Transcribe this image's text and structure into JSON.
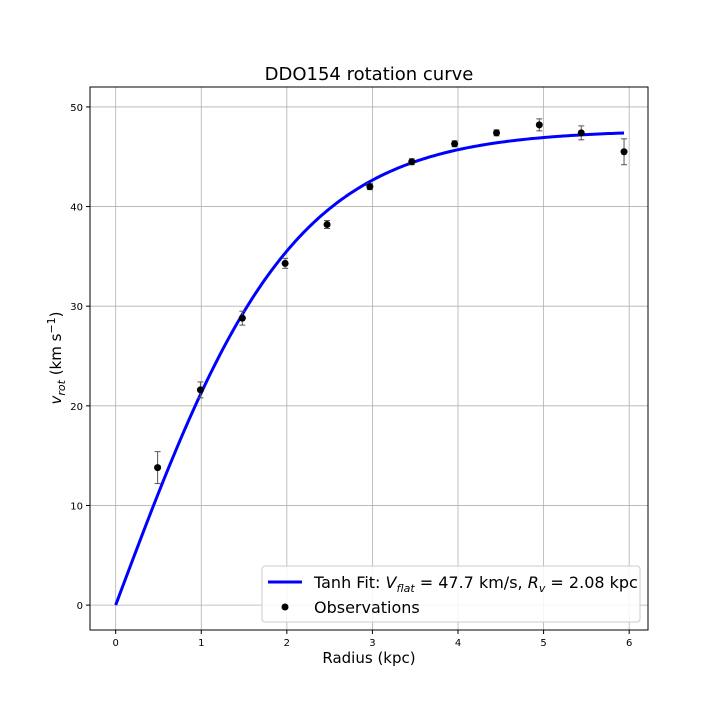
{
  "chart_data": {
    "type": "scatter",
    "title": "DDO154 rotation curve",
    "xlabel": "Radius (kpc)",
    "ylabel": "v_rot (km s^-1)",
    "xlim": [
      -0.3,
      6.22
    ],
    "ylim": [
      -2.5,
      52
    ],
    "xticks": [
      0,
      1,
      2,
      3,
      4,
      5,
      6
    ],
    "yticks": [
      0,
      10,
      20,
      30,
      40,
      50
    ],
    "grid": true,
    "legend_position": "bottom-right",
    "series": [
      {
        "name": "Tanh Fit: V_flat = 47.7 km/s, R_v = 2.08 kpc",
        "type": "line",
        "color": "#0000ff",
        "model": "tanh",
        "v_flat": 47.7,
        "r_v": 2.08,
        "x_range": [
          0,
          5.94
        ]
      },
      {
        "name": "Observations",
        "type": "scatter",
        "color": "#000000",
        "errorbar_color": "#555555",
        "points": [
          {
            "x": 0.49,
            "y": 13.8,
            "err": 1.6
          },
          {
            "x": 0.99,
            "y": 21.6,
            "err": 0.8
          },
          {
            "x": 1.48,
            "y": 28.8,
            "err": 0.7
          },
          {
            "x": 1.98,
            "y": 34.3,
            "err": 0.5
          },
          {
            "x": 2.47,
            "y": 38.2,
            "err": 0.4
          },
          {
            "x": 2.97,
            "y": 42.0,
            "err": 0.3
          },
          {
            "x": 3.46,
            "y": 44.5,
            "err": 0.3
          },
          {
            "x": 3.96,
            "y": 46.3,
            "err": 0.3
          },
          {
            "x": 4.45,
            "y": 47.4,
            "err": 0.3
          },
          {
            "x": 4.95,
            "y": 48.2,
            "err": 0.6
          },
          {
            "x": 5.44,
            "y": 47.4,
            "err": 0.7
          },
          {
            "x": 5.94,
            "y": 45.5,
            "err": 1.3
          }
        ]
      }
    ],
    "legend": {
      "fit_label_prefix": "Tanh Fit: ",
      "vflat_symbol": "V",
      "vflat_sub": "flat",
      "vflat_text": " = 47.7 km/s, ",
      "rv_symbol": "R",
      "rv_sub": "v",
      "rv_text": " = 2.08 kpc",
      "obs_label": "Observations"
    },
    "ylabel_parts": {
      "symbol": "v",
      "sub": "rot",
      "unit": " (km s",
      "sup": "−1",
      "close": ")"
    }
  }
}
